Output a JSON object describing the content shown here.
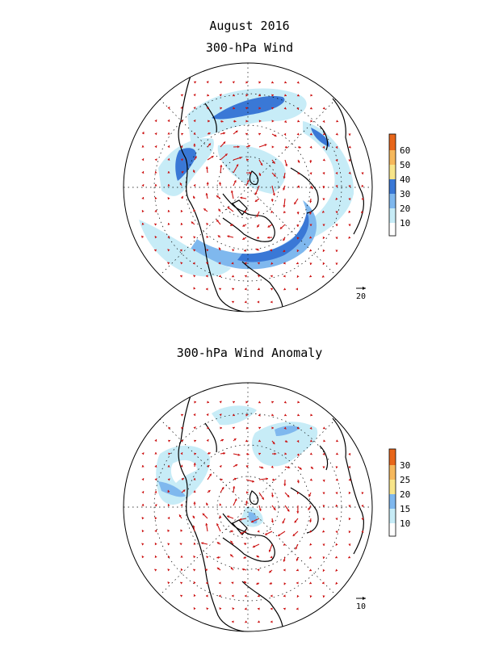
{
  "header": {
    "date": "August 2016",
    "top_title": "300-hPa Wind",
    "bottom_title": "300-hPa Wind Anomaly"
  },
  "top_map": {
    "colorbar_labels": [
      "60",
      "50",
      "40",
      "30",
      "20",
      "10"
    ],
    "colorbar_colors": [
      "#e8661a",
      "#f6b85c",
      "#f8e58a",
      "#3a78d6",
      "#7fb8ee",
      "#c7ecf7",
      "#ffffff"
    ],
    "reference_vector_label": "20"
  },
  "bottom_map": {
    "colorbar_labels": [
      "30",
      "25",
      "20",
      "15",
      "10"
    ],
    "colorbar_colors": [
      "#e8661a",
      "#f6b85c",
      "#f8e58a",
      "#7fb8ee",
      "#c7ecf7",
      "#ffffff"
    ],
    "reference_vector_label": "10"
  },
  "colors": {
    "arrow": "#cc1111",
    "coast": "#000000",
    "shade_light": "#c7ecf7",
    "shade_mid": "#7fb8ee",
    "shade_dark": "#3a78d6"
  }
}
